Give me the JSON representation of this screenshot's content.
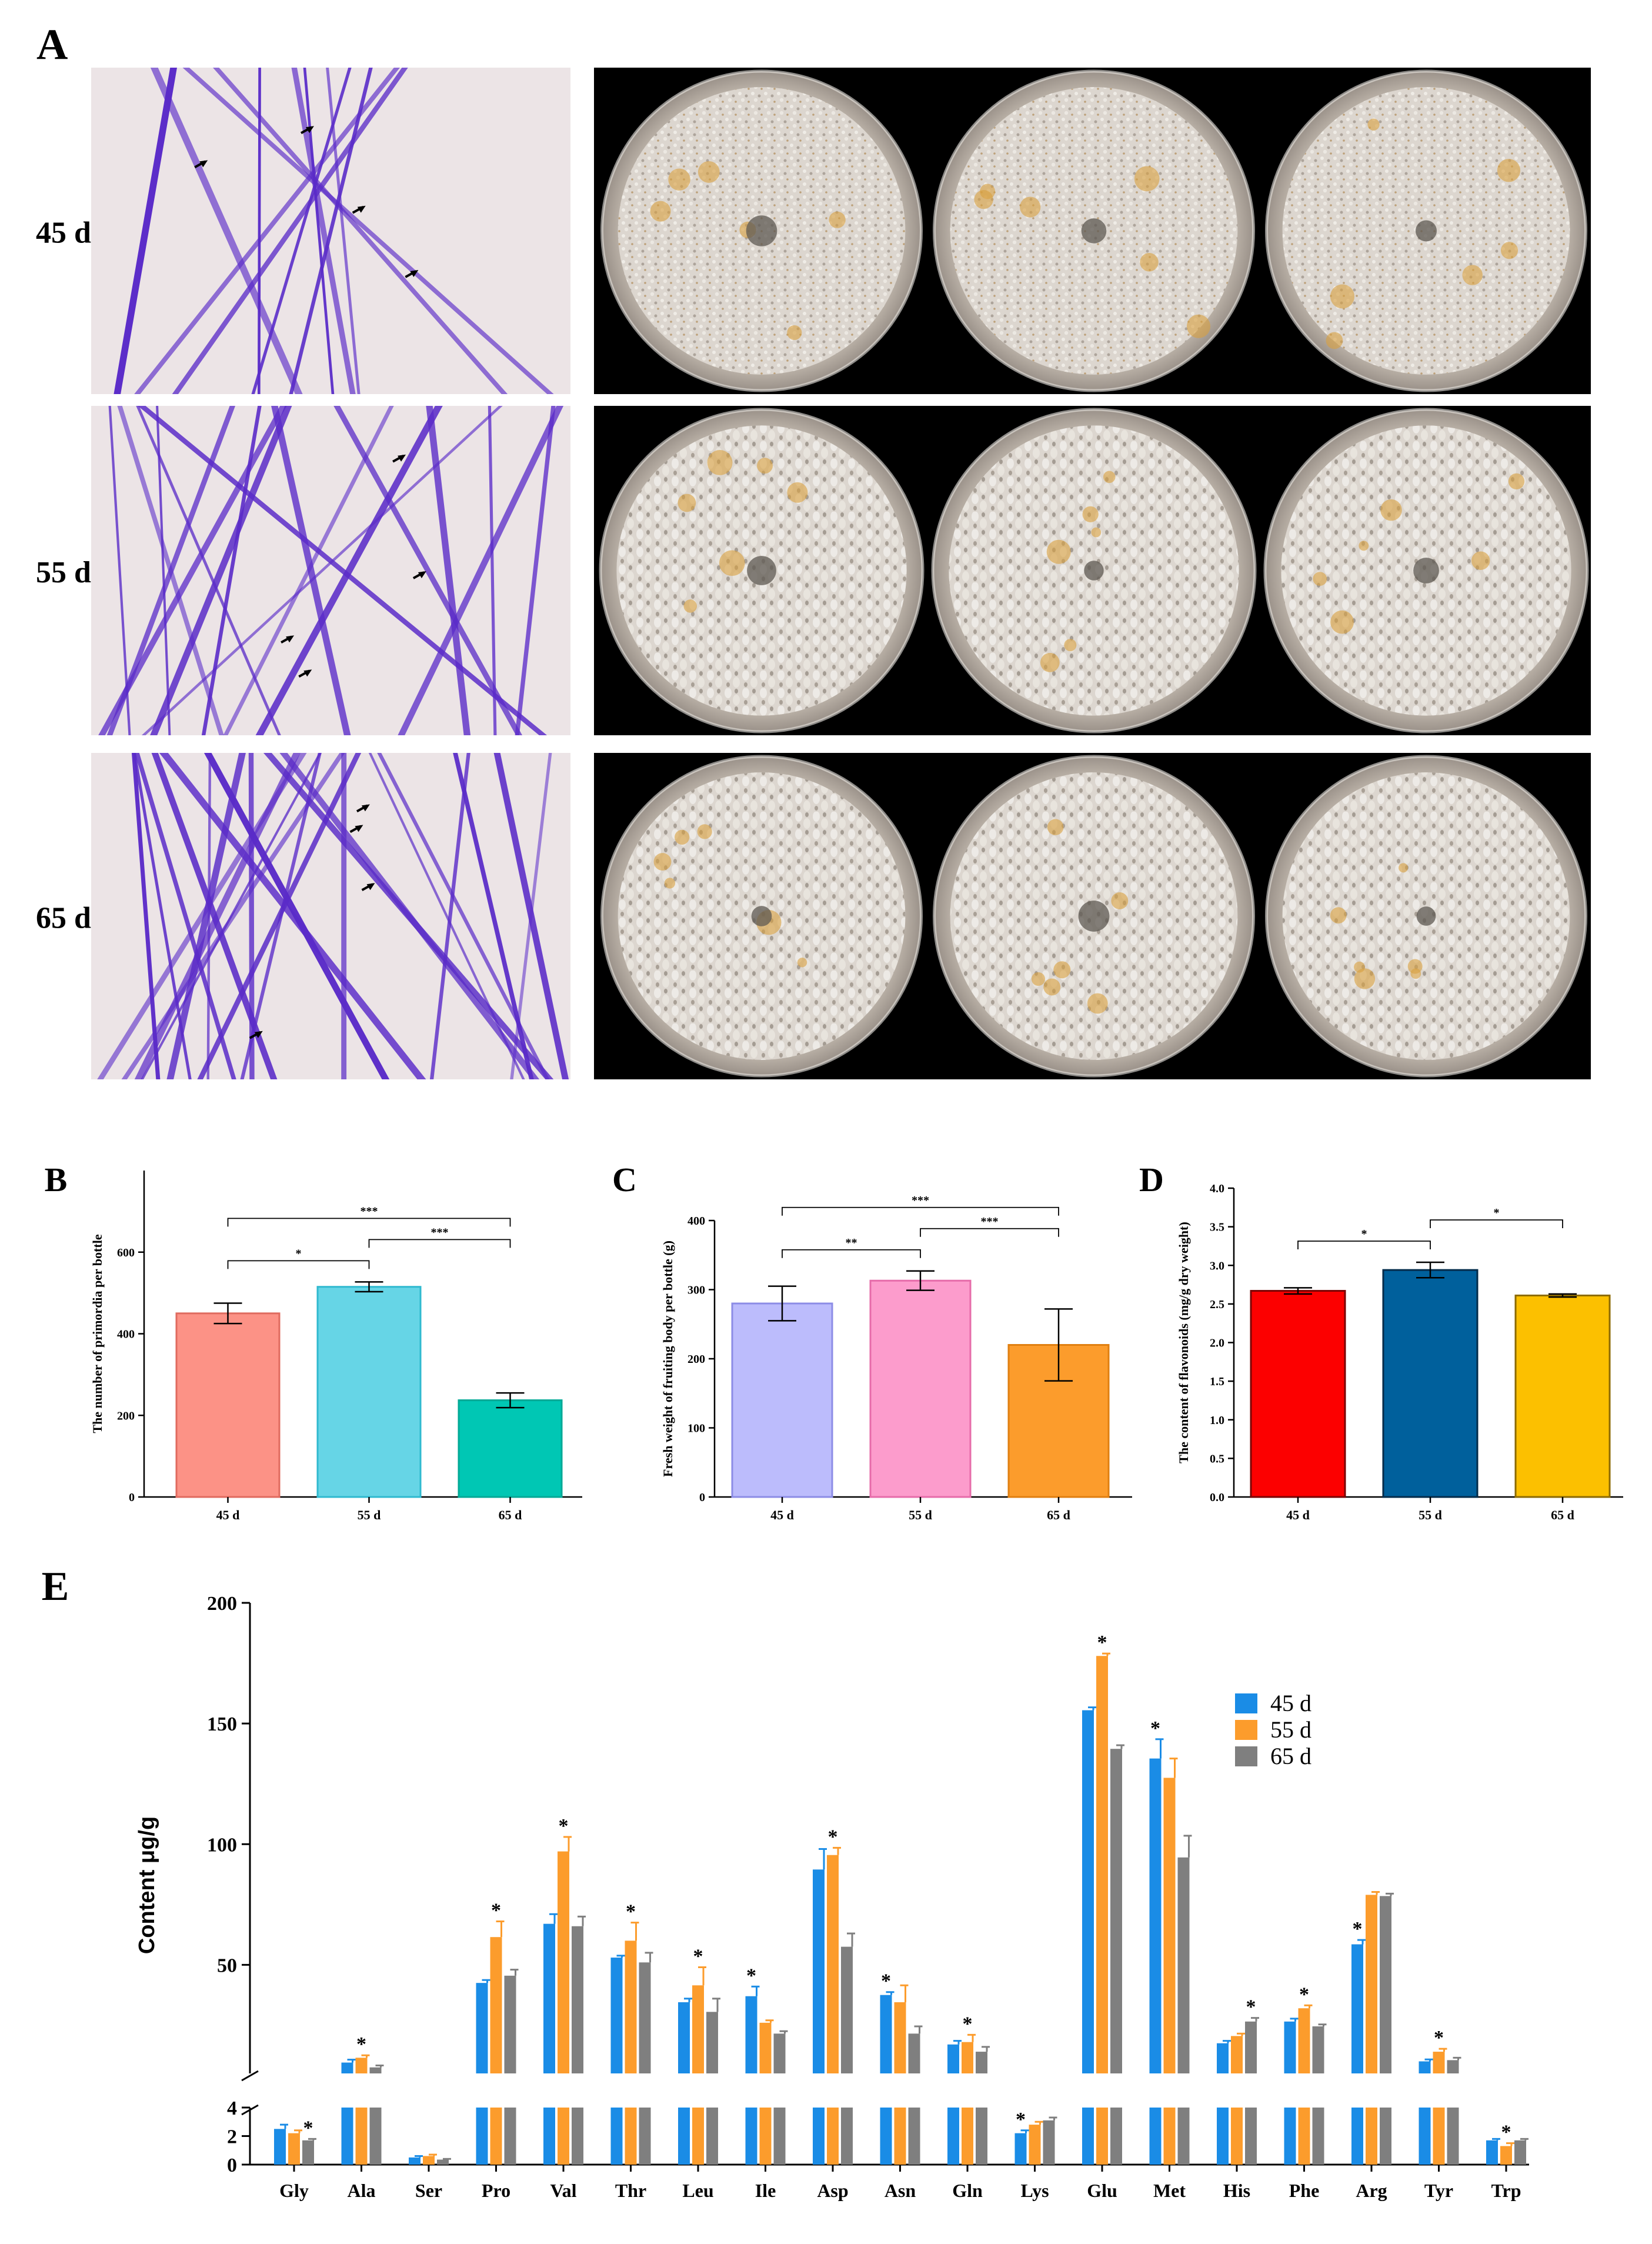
{
  "panel_a": {
    "letter": "A",
    "rows": [
      {
        "label": "45 d"
      },
      {
        "label": "55 d"
      },
      {
        "label": "65 d"
      }
    ],
    "colors": {
      "stain": "#5a2bc8",
      "background": "#ece4e6",
      "dish": "#c8c2bb",
      "mycelium": "#dcd6cf",
      "backdrop": "#000000"
    }
  },
  "chart_data": [
    {
      "panel": "B",
      "type": "bar",
      "ylabel": "The number of primordia per bottle",
      "categories": [
        "45 d",
        "55 d",
        "65 d"
      ],
      "values": [
        450,
        515,
        237
      ],
      "errors": [
        25,
        12,
        18
      ],
      "ylim": [
        0,
        800
      ],
      "yticks": [
        0,
        200,
        400,
        600
      ],
      "colors": [
        "#fc9286",
        "#66d5e6",
        "#00c7b4"
      ],
      "edge_colors": [
        "#e06b5f",
        "#2fb9cf",
        "#00a996"
      ],
      "significance": [
        {
          "from": 0,
          "to": 1,
          "label": "*"
        },
        {
          "from": 1,
          "to": 2,
          "label": "***"
        },
        {
          "from": 0,
          "to": 2,
          "label": "***"
        }
      ]
    },
    {
      "panel": "C",
      "type": "bar",
      "ylabel": "Fresh weight of fruiting body per bottle (g)",
      "categories": [
        "45 d",
        "55 d",
        "65 d"
      ],
      "values": [
        280,
        313,
        220
      ],
      "errors": [
        25,
        14,
        52
      ],
      "ylim": [
        0,
        400
      ],
      "yticks": [
        0,
        100,
        200,
        300,
        400
      ],
      "colors": [
        "#bcbcfc",
        "#fc9ccc",
        "#fc9c2c"
      ],
      "edge_colors": [
        "#8c8ce6",
        "#e66caa",
        "#e07f10"
      ],
      "significance": [
        {
          "from": 0,
          "to": 1,
          "label": "**"
        },
        {
          "from": 1,
          "to": 2,
          "label": "***"
        },
        {
          "from": 0,
          "to": 2,
          "label": "***"
        }
      ]
    },
    {
      "panel": "D",
      "type": "bar",
      "ylabel": "The content of flavonoids (mg/g dry weight)",
      "categories": [
        "45 d",
        "55 d",
        "65 d"
      ],
      "values": [
        2.67,
        2.94,
        2.61
      ],
      "errors": [
        0.04,
        0.1,
        0.02
      ],
      "ylim": [
        0,
        4.0
      ],
      "yticks": [
        0.0,
        0.5,
        1.0,
        1.5,
        2.0,
        2.5,
        3.0,
        3.5,
        4.0
      ],
      "ytick_labels": [
        "0.0",
        "0.5",
        "1.0",
        "1.5",
        "2.0",
        "2.5",
        "3.0",
        "3.5",
        "4.0"
      ],
      "colors": [
        "#fc0000",
        "#00609c",
        "#fcc000"
      ],
      "edge_colors": [
        "#7a0000",
        "#002b4a",
        "#8c6a00"
      ],
      "significance": [
        {
          "from": 0,
          "to": 1,
          "label": "*"
        },
        {
          "from": 1,
          "to": 2,
          "label": "*"
        }
      ]
    },
    {
      "panel": "E",
      "type": "bar",
      "ylabel": "Content μg/g",
      "categories": [
        "Gly",
        "Ala",
        "Ser",
        "Pro",
        "Val",
        "Thr",
        "Leu",
        "Ile",
        "Asp",
        "Asn",
        "Gln",
        "Lys",
        "Glu",
        "Met",
        "His",
        "Phe",
        "Arg",
        "Tyr",
        "Trp"
      ],
      "series": [
        {
          "name": "45 d",
          "color": "#1a8ce6",
          "values": [
            2.5,
            9.5,
            0.5,
            42.5,
            67,
            53,
            34.5,
            37,
            89.5,
            37.5,
            17,
            2.2,
            155.5,
            135.5,
            17.5,
            26.5,
            58.5,
            10,
            1.7
          ],
          "errors": [
            0.3,
            1.2,
            0.1,
            1.2,
            4,
            0.8,
            1.5,
            4,
            8.5,
            1.2,
            1.5,
            0.2,
            1.2,
            8,
            1,
            1.2,
            1.8,
            0.8,
            0.1
          ]
        },
        {
          "name": "55 d",
          "color": "#fc9c2c",
          "values": [
            2.2,
            11.5,
            0.6,
            61.5,
            97,
            60,
            41.5,
            26,
            95.5,
            34.5,
            18,
            2.8,
            178,
            127.5,
            20.5,
            32,
            79,
            14,
            1.3
          ],
          "errors": [
            0.2,
            1,
            0.1,
            6.5,
            6,
            7.5,
            7.5,
            1,
            3,
            7,
            3,
            0.2,
            1,
            8,
            1,
            1.2,
            1.2,
            1.2,
            0.2
          ]
        },
        {
          "name": "65 d",
          "color": "#7f7f7f",
          "values": [
            1.7,
            7.5,
            0.35,
            45.5,
            66,
            51,
            30.5,
            21.5,
            57.5,
            21.5,
            14,
            3.1,
            139.5,
            94.5,
            26.5,
            24.5,
            78.5,
            10.5,
            1.7
          ],
          "errors": [
            0.1,
            0.8,
            0.05,
            2.5,
            4,
            4,
            5.5,
            1,
            5.5,
            3,
            2,
            0.2,
            1.5,
            9,
            1.5,
            0.8,
            1,
            1,
            0.1
          ]
        }
      ],
      "significance_marks": [
        {
          "index": 0,
          "series": 2
        },
        {
          "index": 1,
          "series": 1
        },
        {
          "index": 3,
          "series": 1
        },
        {
          "index": 4,
          "series": 1
        },
        {
          "index": 5,
          "series": 1
        },
        {
          "index": 6,
          "series": 1
        },
        {
          "index": 7,
          "series": 0
        },
        {
          "index": 8,
          "series": 1
        },
        {
          "index": 9,
          "series": 0
        },
        {
          "index": 10,
          "series": 1
        },
        {
          "index": 11,
          "series": 0
        },
        {
          "index": 12,
          "series": 1
        },
        {
          "index": 13,
          "series": 0
        },
        {
          "index": 14,
          "series": 2
        },
        {
          "index": 15,
          "series": 1
        },
        {
          "index": 16,
          "series": 0
        },
        {
          "index": 17,
          "series": 1
        },
        {
          "index": 18,
          "series": 1
        }
      ],
      "upper_yticks": [
        50,
        100,
        150,
        200
      ],
      "lower_yticks": [
        0,
        2,
        4
      ],
      "upper_range": [
        5,
        200
      ],
      "lower_range": [
        0,
        4
      ],
      "legend_position": "right"
    }
  ]
}
